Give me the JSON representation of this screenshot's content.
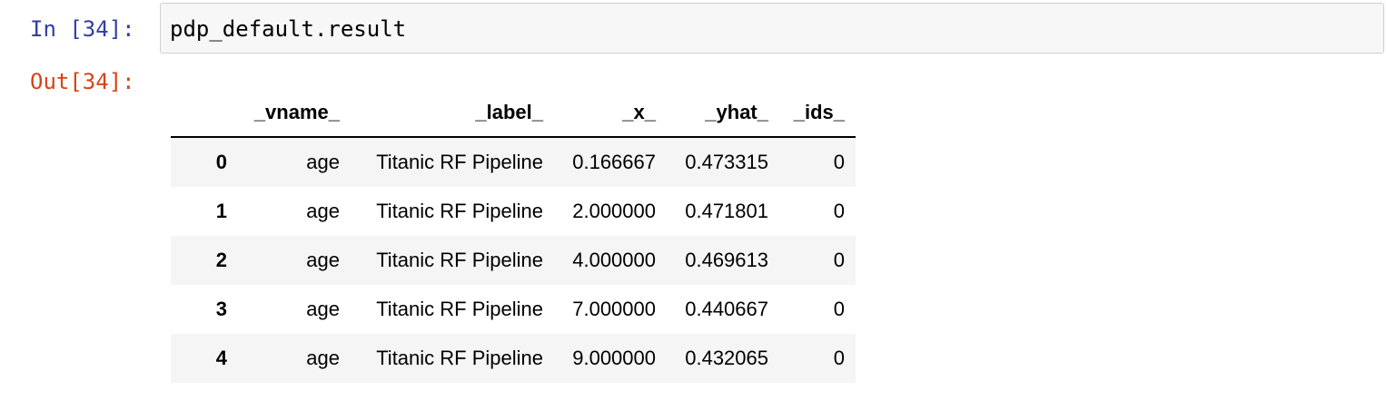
{
  "input_cell": {
    "prompt": "In [34]:",
    "code": "pdp_default.result"
  },
  "output_cell": {
    "prompt": "Out[34]:",
    "table": {
      "columns": [
        "",
        "_vname_",
        "_label_",
        "_x_",
        "_yhat_",
        "_ids_"
      ],
      "rows": [
        {
          "index": "0",
          "vname": "age",
          "label": "Titanic RF Pipeline",
          "x": "0.166667",
          "yhat": "0.473315",
          "ids": "0"
        },
        {
          "index": "1",
          "vname": "age",
          "label": "Titanic RF Pipeline",
          "x": "2.000000",
          "yhat": "0.471801",
          "ids": "0"
        },
        {
          "index": "2",
          "vname": "age",
          "label": "Titanic RF Pipeline",
          "x": "4.000000",
          "yhat": "0.469613",
          "ids": "0"
        },
        {
          "index": "3",
          "vname": "age",
          "label": "Titanic RF Pipeline",
          "x": "7.000000",
          "yhat": "0.440667",
          "ids": "0"
        },
        {
          "index": "4",
          "vname": "age",
          "label": "Titanic RF Pipeline",
          "x": "9.000000",
          "yhat": "0.432065",
          "ids": "0"
        }
      ]
    }
  },
  "colors": {
    "in_prompt": "#303f9f",
    "out_prompt": "#d84315",
    "code_background": "#f7f7f7",
    "code_border": "#cfcfcf",
    "row_stripe": "#f5f5f5"
  }
}
